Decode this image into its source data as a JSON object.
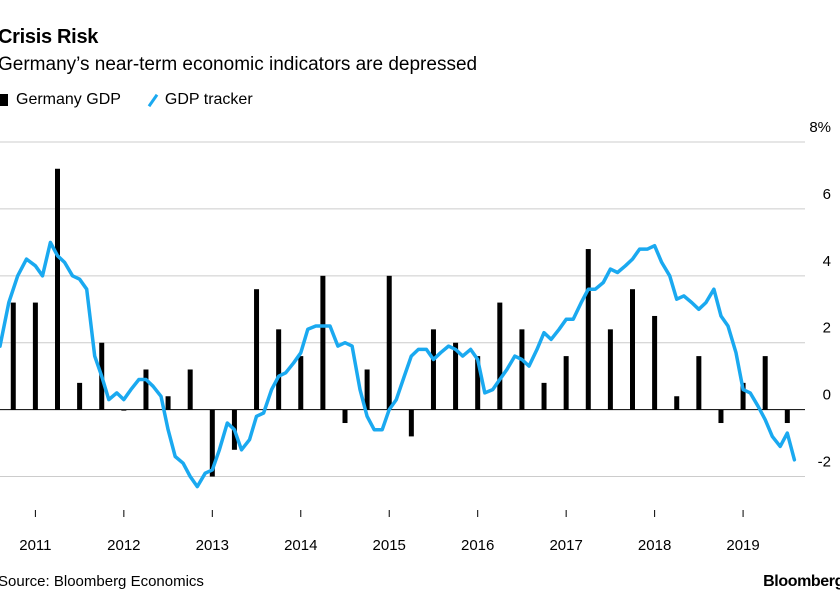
{
  "header": {
    "title": "Crisis Risk",
    "subtitle": "Germany’s near-term economic indicators are depressed"
  },
  "legend": {
    "bar_label": "Germany GDP",
    "line_label": "GDP tracker"
  },
  "footer": {
    "source": "Source: Bloomberg Economics",
    "brand": "Bloomberg"
  },
  "colors": {
    "bar": "#000000",
    "line": "#1aa9f0",
    "grid": "#cccccc",
    "zero": "#000000"
  },
  "chart_data": {
    "type": "bar+line",
    "title": "Crisis Risk",
    "subtitle": "Germany’s near-term economic indicators are depressed",
    "ylabel": "%",
    "ylim": [
      -3,
      8
    ],
    "yticks": [
      -2,
      0,
      2,
      4,
      6,
      8
    ],
    "ytick_labels": [
      "-2",
      "0",
      "2",
      "4",
      "6",
      "8%"
    ],
    "xlim": [
      2010.6,
      2019.7
    ],
    "xticks": [
      2011,
      2012,
      2013,
      2014,
      2015,
      2016,
      2017,
      2018,
      2019
    ],
    "xtick_labels": [
      "2011",
      "2012",
      "2013",
      "2014",
      "2015",
      "2016",
      "2017",
      "2018",
      "2019"
    ],
    "bar_series": {
      "name": "Germany GDP",
      "x": [
        2010.75,
        2011.0,
        2011.25,
        2011.5,
        2011.75,
        2012.0,
        2012.25,
        2012.5,
        2012.75,
        2013.0,
        2013.25,
        2013.5,
        2013.75,
        2014.0,
        2014.25,
        2014.5,
        2014.75,
        2015.0,
        2015.25,
        2015.5,
        2015.75,
        2016.0,
        2016.25,
        2016.5,
        2016.75,
        2017.0,
        2017.25,
        2017.5,
        2017.75,
        2018.0,
        2018.25,
        2018.5,
        2018.75,
        2019.0,
        2019.25,
        2019.5
      ],
      "values": [
        3.2,
        3.2,
        7.2,
        0.8,
        2.0,
        0.0,
        1.2,
        0.4,
        1.2,
        -2.0,
        -1.2,
        3.6,
        2.4,
        1.6,
        4.0,
        -0.4,
        1.2,
        4.0,
        -0.8,
        2.4,
        2.0,
        1.6,
        3.2,
        2.4,
        0.8,
        1.6,
        4.8,
        2.4,
        3.6,
        2.8,
        0.4,
        1.6,
        -0.4,
        0.8,
        1.6,
        -0.4
      ]
    },
    "line_series": {
      "name": "GDP tracker",
      "x": [
        2010.6,
        2010.7,
        2010.8,
        2010.9,
        2011.0,
        2011.08,
        2011.17,
        2011.25,
        2011.33,
        2011.42,
        2011.5,
        2011.58,
        2011.67,
        2011.75,
        2011.83,
        2011.92,
        2012.0,
        2012.08,
        2012.17,
        2012.25,
        2012.33,
        2012.42,
        2012.5,
        2012.58,
        2012.67,
        2012.75,
        2012.83,
        2012.92,
        2013.0,
        2013.08,
        2013.17,
        2013.25,
        2013.33,
        2013.42,
        2013.5,
        2013.58,
        2013.67,
        2013.75,
        2013.83,
        2013.92,
        2014.0,
        2014.08,
        2014.17,
        2014.25,
        2014.33,
        2014.42,
        2014.5,
        2014.58,
        2014.67,
        2014.75,
        2014.83,
        2014.92,
        2015.0,
        2015.08,
        2015.17,
        2015.25,
        2015.33,
        2015.42,
        2015.5,
        2015.58,
        2015.67,
        2015.75,
        2015.83,
        2015.92,
        2016.0,
        2016.08,
        2016.17,
        2016.25,
        2016.33,
        2016.42,
        2016.5,
        2016.58,
        2016.67,
        2016.75,
        2016.83,
        2016.92,
        2017.0,
        2017.08,
        2017.17,
        2017.25,
        2017.33,
        2017.42,
        2017.5,
        2017.58,
        2017.67,
        2017.75,
        2017.83,
        2017.92,
        2018.0,
        2018.08,
        2018.17,
        2018.25,
        2018.33,
        2018.42,
        2018.5,
        2018.58,
        2018.67,
        2018.75,
        2018.83,
        2018.92,
        2019.0,
        2019.08,
        2019.17,
        2019.25,
        2019.33,
        2019.42,
        2019.5,
        2019.58
      ],
      "values": [
        1.9,
        3.2,
        4.0,
        4.5,
        4.3,
        4.0,
        5.0,
        4.6,
        4.4,
        4.0,
        3.9,
        3.6,
        1.6,
        1.0,
        0.3,
        0.5,
        0.3,
        0.6,
        0.9,
        0.9,
        0.7,
        0.4,
        -0.6,
        -1.4,
        -1.6,
        -2.0,
        -2.3,
        -1.9,
        -1.8,
        -1.2,
        -0.4,
        -0.6,
        -1.2,
        -0.9,
        -0.2,
        -0.1,
        0.6,
        1.0,
        1.1,
        1.4,
        1.7,
        2.4,
        2.5,
        2.5,
        2.5,
        1.9,
        2.0,
        1.9,
        0.6,
        -0.2,
        -0.6,
        -0.6,
        0.0,
        0.3,
        1.0,
        1.6,
        1.8,
        1.8,
        1.5,
        1.7,
        1.9,
        1.8,
        1.6,
        1.8,
        1.5,
        0.5,
        0.6,
        0.9,
        1.2,
        1.6,
        1.5,
        1.3,
        1.8,
        2.3,
        2.1,
        2.4,
        2.7,
        2.7,
        3.2,
        3.6,
        3.6,
        3.8,
        4.2,
        4.1,
        4.3,
        4.5,
        4.8,
        4.8,
        4.9,
        4.4,
        4.0,
        3.3,
        3.4,
        3.2,
        3.0,
        3.2,
        3.6,
        2.8,
        2.5,
        1.7,
        0.6,
        0.5,
        0.1,
        -0.3,
        -0.8,
        -1.1,
        -0.7,
        -1.5
      ]
    }
  }
}
